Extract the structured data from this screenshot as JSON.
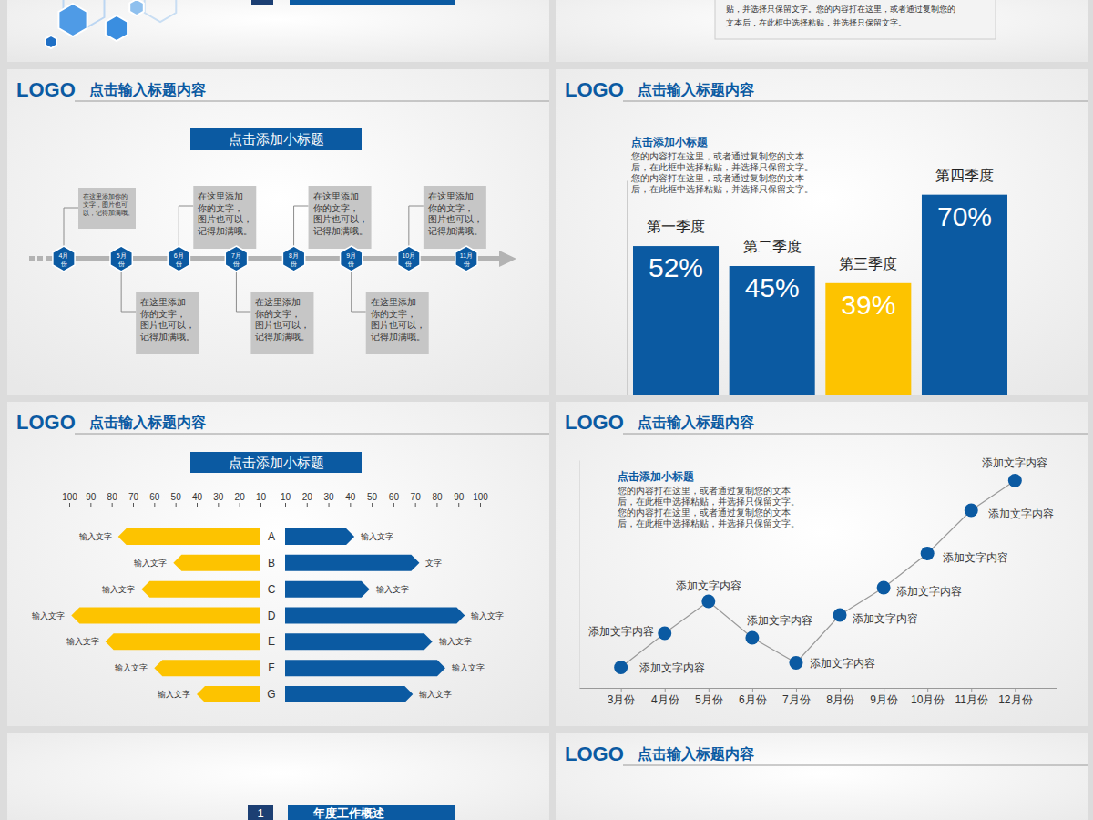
{
  "header": {
    "logo": "LOGO",
    "title": "点击输入标题内容"
  },
  "cover_text_box": [
    "贴，并选择只保留文字。您的内容打在这里，或者通过复制您的",
    "文本后，在此框中选择粘贴，并选择只保留文字。"
  ],
  "section": {
    "number": "1",
    "title": "年度工作概述"
  },
  "timeline": {
    "title": "点击添加小标题",
    "months": [
      "4月份",
      "5月份",
      "6月份",
      "7月份",
      "8月份",
      "9月份",
      "10月份",
      "11月份"
    ],
    "notes": [
      "在这里添加你的文字，图片也可以，记得加满哦。",
      "在这里添加你的文字，图片也可以，记得加满哦。",
      "在这里添加你的文字，图片也可以，记得加满哦。",
      "在这里添加你的文字，图片也可以，记得加满哦。",
      "在这里添加你的文字，图片也可以，记得加满哦。",
      "在这里添加你的文字，图片也可以，记得加满哦。",
      "在这里添加你的文字，图片也可以，记得加满哦。",
      null
    ]
  },
  "chart_data": [
    {
      "type": "bar",
      "title": "点击添加小标题",
      "annotations": [
        "您的内容打在这里，或者通过复制您的文本",
        "后，在此框中选择粘贴，并选择只保留文字。",
        "您的内容打在这里，或者通过复制您的文本",
        "后，在此框中选择粘贴，并选择只保留文字。"
      ],
      "categories": [
        "第一季度",
        "第二季度",
        "第三季度",
        "第四季度"
      ],
      "values": [
        52,
        45,
        39,
        70
      ],
      "value_labels": [
        "52%",
        "45%",
        "39%",
        "70%"
      ],
      "colors": [
        "#0b5aa2",
        "#0b5aa2",
        "#fdc300",
        "#0b5aa2"
      ],
      "ylim": [
        0,
        75
      ],
      "data_labels": true,
      "tick_labels": false
    },
    {
      "type": "bar",
      "orientation": "horizontal",
      "title": "点击添加小标题",
      "categories": [
        "A",
        "B",
        "C",
        "D",
        "E",
        "F",
        "G"
      ],
      "xlim": [
        10,
        100
      ],
      "xticks": [
        10,
        20,
        30,
        40,
        50,
        60,
        70,
        80,
        90,
        100
      ],
      "series": [
        {
          "color": "#fdc300",
          "values": [
            77,
            51,
            66,
            99,
            83,
            60,
            40
          ],
          "annotations": [
            "输入文字",
            "输入文字",
            "输入文字",
            "输入文字",
            "输入文字",
            "输入文字",
            "输入文字"
          ]
        },
        {
          "color": "#0b5aa2",
          "values": [
            42,
            72,
            49,
            93,
            78,
            84,
            69
          ],
          "annotations": [
            "输入文字",
            "文字",
            "输入文字",
            "输入文字",
            "输入文字",
            "输入文字",
            "输入文字"
          ]
        }
      ]
    },
    {
      "type": "line",
      "title": "点击添加小标题",
      "annotations": [
        "您的内容打在这里，或者通过复制您的文本",
        "后，在此框中选择粘贴，并选择只保留文字。",
        "您的内容打在这里，或者通过复制您的文本",
        "后，在此框中选择粘贴，并选择只保留文字。"
      ],
      "categories": [
        "3月份",
        "4月份",
        "5月份",
        "6月份",
        "7月份",
        "8月份",
        "9月份",
        "10月份",
        "11月份",
        "12月份"
      ],
      "values": [
        9,
        24,
        38,
        22,
        11,
        32,
        44,
        59,
        78,
        91
      ],
      "point_labels": [
        "添加文字内容",
        "添加文字内容",
        "添加文字内容",
        "添加文字内容",
        "添加文字内容",
        "添加文字内容",
        "添加文字内容",
        "添加文字内容",
        "添加文字内容",
        "添加文字内容"
      ],
      "ylim": [
        0,
        100
      ],
      "color": "#0b5aa2",
      "marker": "circle",
      "tick_labels": "x"
    }
  ]
}
